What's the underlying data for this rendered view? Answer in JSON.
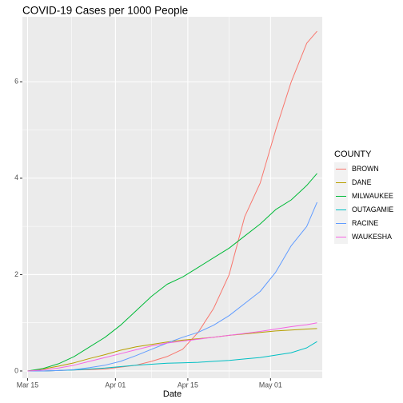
{
  "chart_data": {
    "type": "line",
    "title": "COVID-19 Cases per 1000 People",
    "xlabel": "Date",
    "ylabel": "",
    "x_type": "date",
    "xlim": [
      "2020-03-14",
      "2020-05-11"
    ],
    "ylim": [
      -0.15,
      7.35
    ],
    "x_ticks": [
      {
        "date": "2020-03-15",
        "label": "Mar 15"
      },
      {
        "date": "2020-04-01",
        "label": "Apr 01"
      },
      {
        "date": "2020-04-15",
        "label": "Apr 15"
      },
      {
        "date": "2020-05-01",
        "label": "May 01"
      }
    ],
    "y_ticks": [
      0,
      2,
      4,
      6
    ],
    "grid": true,
    "background": "#ebebeb",
    "legend": {
      "title": "COUNTY",
      "position": "right"
    },
    "dates": [
      "2020-03-15",
      "2020-03-18",
      "2020-03-21",
      "2020-03-24",
      "2020-03-27",
      "2020-03-30",
      "2020-04-02",
      "2020-04-05",
      "2020-04-08",
      "2020-04-11",
      "2020-04-14",
      "2020-04-17",
      "2020-04-20",
      "2020-04-23",
      "2020-04-26",
      "2020-04-29",
      "2020-05-02",
      "2020-05-05",
      "2020-05-08",
      "2020-05-10"
    ],
    "series": [
      {
        "name": "BROWN",
        "color": "#F8766D",
        "values": [
          0.0,
          0.0,
          0.01,
          0.02,
          0.03,
          0.04,
          0.08,
          0.12,
          0.2,
          0.3,
          0.45,
          0.8,
          1.3,
          2.0,
          3.2,
          3.9,
          5.0,
          6.0,
          6.8,
          7.05
        ]
      },
      {
        "name": "DANE",
        "color": "#B79F00",
        "values": [
          0.0,
          0.04,
          0.1,
          0.17,
          0.26,
          0.34,
          0.43,
          0.5,
          0.55,
          0.6,
          0.64,
          0.67,
          0.7,
          0.74,
          0.77,
          0.8,
          0.83,
          0.85,
          0.87,
          0.88
        ]
      },
      {
        "name": "MILWAUKEE",
        "color": "#00BA38",
        "values": [
          0.0,
          0.05,
          0.15,
          0.3,
          0.5,
          0.7,
          0.95,
          1.25,
          1.55,
          1.8,
          1.95,
          2.15,
          2.35,
          2.55,
          2.8,
          3.05,
          3.35,
          3.55,
          3.85,
          4.1
        ]
      },
      {
        "name": "OUTAGAMIE",
        "color": "#00BFC4",
        "values": [
          0.0,
          0.0,
          0.01,
          0.02,
          0.04,
          0.06,
          0.09,
          0.12,
          0.14,
          0.16,
          0.17,
          0.18,
          0.2,
          0.22,
          0.25,
          0.28,
          0.33,
          0.38,
          0.48,
          0.61
        ]
      },
      {
        "name": "RACINE",
        "color": "#619CFF",
        "values": [
          0.0,
          0.0,
          0.01,
          0.03,
          0.07,
          0.12,
          0.2,
          0.32,
          0.45,
          0.58,
          0.7,
          0.8,
          0.95,
          1.15,
          1.4,
          1.65,
          2.05,
          2.6,
          3.0,
          3.5
        ]
      },
      {
        "name": "WAUKESHA",
        "color": "#F564E3",
        "values": [
          0.0,
          0.02,
          0.06,
          0.12,
          0.2,
          0.28,
          0.36,
          0.44,
          0.52,
          0.58,
          0.62,
          0.66,
          0.7,
          0.74,
          0.78,
          0.82,
          0.87,
          0.92,
          0.96,
          1.0
        ]
      }
    ]
  }
}
